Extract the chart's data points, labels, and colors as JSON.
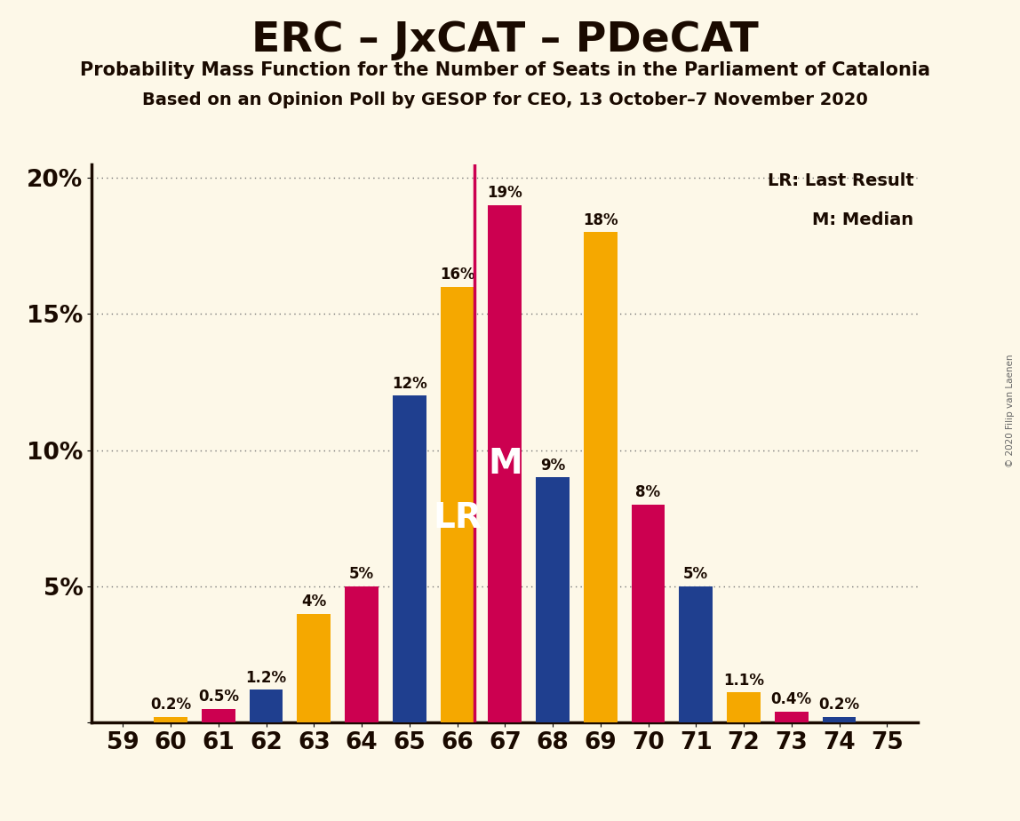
{
  "title": "ERC – JxCAT – PDeCAT",
  "subtitle1": "Probability Mass Function for the Number of Seats in the Parliament of Catalonia",
  "subtitle2": "Based on an Opinion Poll by GESOP for CEO, 13 October–7 November 2020",
  "copyright": "© 2020 Filip van Laenen",
  "seats": [
    59,
    60,
    61,
    62,
    63,
    64,
    65,
    66,
    67,
    68,
    69,
    70,
    71,
    72,
    73,
    74,
    75
  ],
  "values": [
    0.0,
    0.2,
    0.5,
    1.2,
    4.0,
    5.0,
    12.0,
    16.0,
    19.0,
    9.0,
    18.0,
    8.0,
    5.0,
    1.1,
    0.4,
    0.2,
    0.0
  ],
  "colors": [
    "#1f3f8f",
    "#f5a800",
    "#cc0050",
    "#1f3f8f",
    "#f5a800",
    "#cc0050",
    "#1f3f8f",
    "#f5a800",
    "#cc0050",
    "#1f3f8f",
    "#f5a800",
    "#cc0050",
    "#1f3f8f",
    "#f5a800",
    "#cc0050",
    "#1f3f8f",
    "#1f3f8f"
  ],
  "blue_color": "#1f3f8f",
  "orange_color": "#f5a800",
  "red_color": "#cc0050",
  "lr_seat": 66,
  "median_seat": 67,
  "lr_line_color": "#cc0050",
  "background_color": "#fdf8e8",
  "ylim": [
    0,
    20.5
  ],
  "yticks": [
    0,
    5,
    10,
    15,
    20
  ],
  "ytick_labels": [
    "",
    "5%",
    "10%",
    "15%",
    "20%"
  ],
  "bar_width": 0.7,
  "label_fontsize": 12,
  "tick_fontsize": 19,
  "title_fontsize": 34,
  "subtitle_fontsize": 15
}
